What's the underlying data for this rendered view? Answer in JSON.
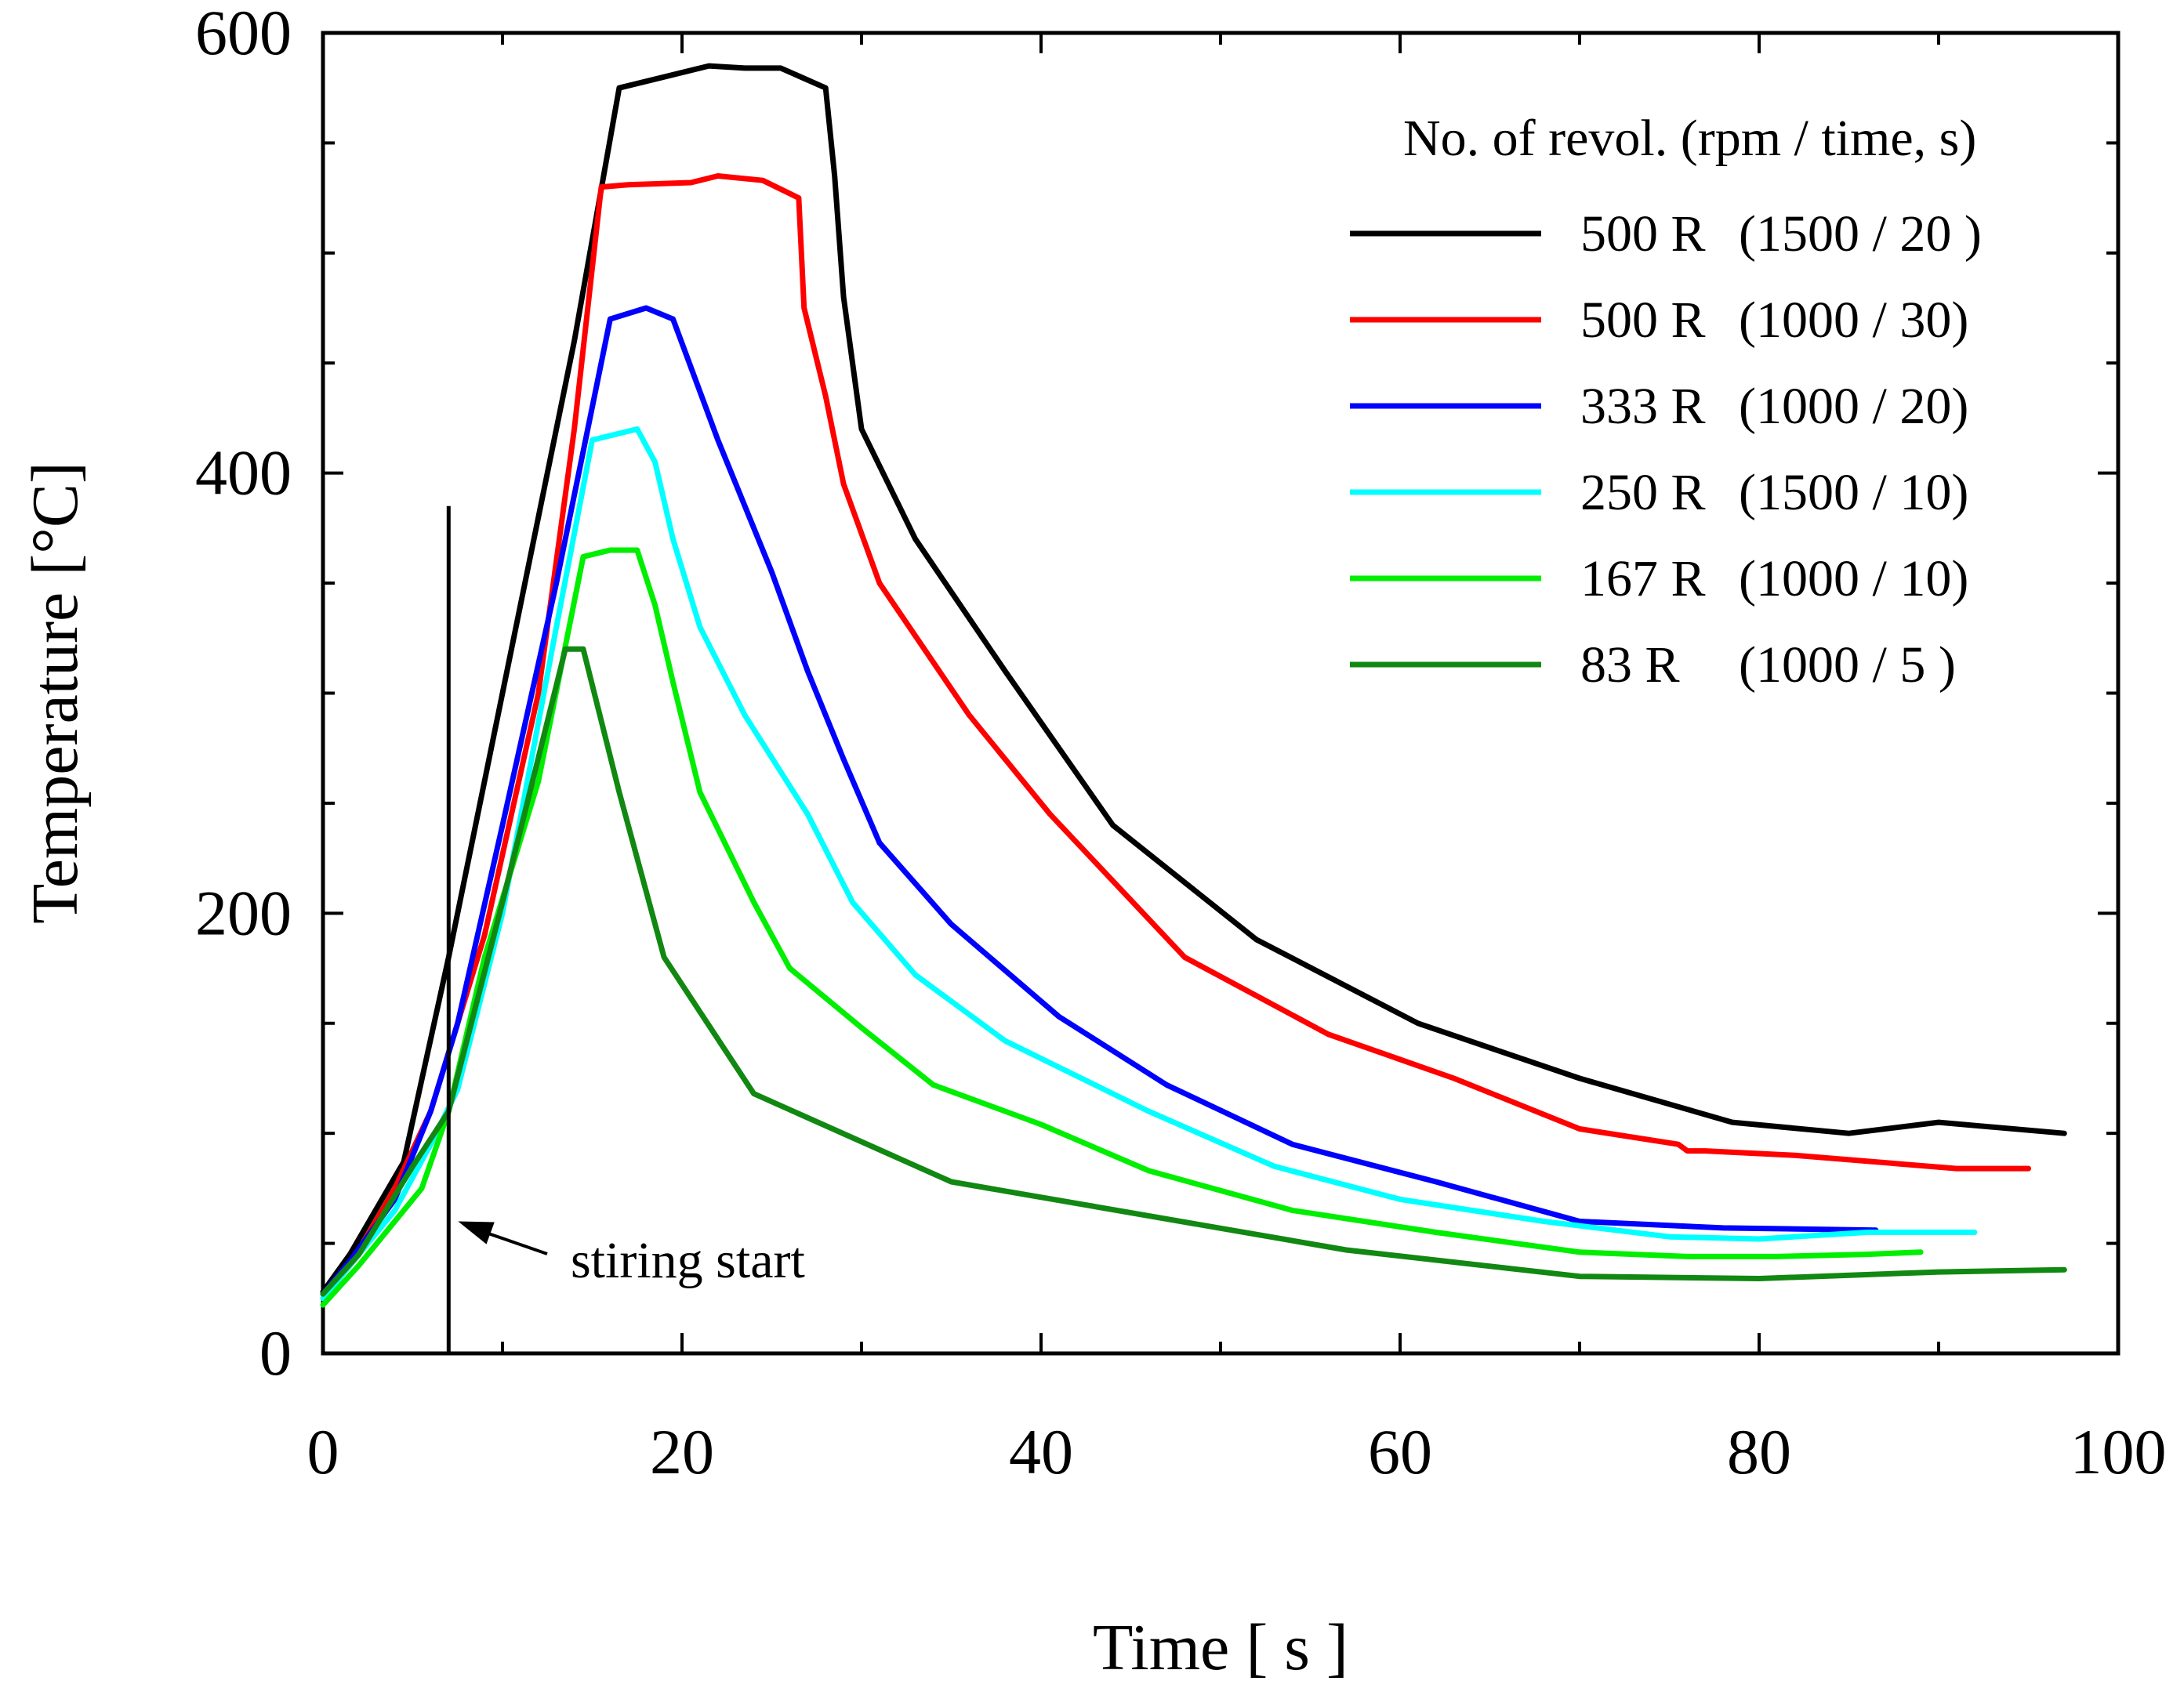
{
  "chart_data": {
    "type": "line",
    "xlabel": "Time [ s ]",
    "ylabel": "Temperature [°C]",
    "xlim": [
      0,
      100
    ],
    "ylim": [
      0,
      600
    ],
    "x_ticks": [
      0,
      20,
      40,
      60,
      80,
      100
    ],
    "y_ticks": [
      0,
      200,
      400,
      600
    ],
    "x_tick_labels": [
      "0",
      "20",
      "40",
      "60",
      "80",
      "100"
    ],
    "y_tick_labels": [
      "0",
      "200",
      "400",
      "600"
    ],
    "grid": false,
    "legend": {
      "title": "No. of revol. (rpm / time, s)",
      "position": "top-right",
      "entries": [
        {
          "rev": "500 R",
          "setting": "(1500 / 20 )"
        },
        {
          "rev": "500 R",
          "setting": "(1000 / 30)"
        },
        {
          "rev": "333 R",
          "setting": "(1000 / 20)"
        },
        {
          "rev": "250 R",
          "setting": "(1500 / 10)"
        },
        {
          "rev": "167 R",
          "setting": "(1000 / 10)"
        },
        {
          "rev": "83 R",
          "setting": "(1000 / 5 )"
        }
      ]
    },
    "annotation": {
      "text": "stiring start",
      "x": 7,
      "target_y": 60,
      "line_ymin": 0,
      "line_ymax": 385
    },
    "series": [
      {
        "name": "500 R (1500 / 20 )",
        "color": "#000000",
        "x": [
          0,
          1.5,
          4.5,
          7,
          10,
          14,
          16.5,
          19,
          21.5,
          23.5,
          25.5,
          28,
          28.5,
          29,
          30,
          33,
          38,
          44,
          52,
          61,
          70,
          78.5,
          85,
          90,
          97
        ],
        "y": [
          28,
          45,
          87,
          180,
          300,
          460,
          575,
          580,
          585,
          584,
          584,
          575,
          535,
          480,
          420,
          370,
          310,
          240,
          188,
          150,
          125,
          105,
          100,
          105,
          100
        ]
      },
      {
        "name": "500 R (1000 / 30)",
        "color": "#ff0000",
        "x": [
          0,
          1.5,
          4,
          6,
          9,
          12,
          14,
          15.5,
          17,
          20.5,
          22,
          24.5,
          26.5,
          26.8,
          28,
          29,
          31,
          36,
          40.5,
          48,
          56,
          63,
          70,
          75.5,
          76,
          77,
          82,
          91,
          95
        ],
        "y": [
          25,
          40,
          75,
          110,
          190,
          300,
          420,
          530,
          531,
          532,
          535,
          533,
          525,
          475,
          435,
          395,
          350,
          290,
          245,
          180,
          145,
          125,
          102,
          95,
          92,
          92,
          90,
          84,
          84
        ]
      },
      {
        "name": "333 R (1000 / 20)",
        "color": "#0000ff",
        "x": [
          0,
          1.5,
          4,
          6,
          7.5,
          10,
          13,
          16,
          18,
          19.5,
          22,
          25,
          27,
          29,
          31,
          35,
          41,
          47,
          54,
          62,
          70,
          78,
          86.5
        ],
        "y": [
          27,
          42,
          70,
          110,
          150,
          240,
          350,
          470,
          475,
          470,
          415,
          355,
          310,
          270,
          232,
          195,
          153,
          122,
          95,
          78,
          60,
          57,
          56
        ]
      },
      {
        "name": "250 R (1500 / 10)",
        "color": "#00ffff",
        "x": [
          0,
          1.5,
          4,
          6,
          7.5,
          10,
          13,
          15,
          17.5,
          18.5,
          19.5,
          21,
          23.5,
          27,
          29.5,
          33,
          38,
          46,
          53,
          60,
          68,
          75,
          80,
          86,
          92
        ],
        "y": [
          25,
          40,
          65,
          95,
          120,
          200,
          330,
          415,
          420,
          405,
          370,
          330,
          290,
          245,
          205,
          172,
          142,
          110,
          85,
          70,
          60,
          53,
          52,
          55,
          55
        ]
      },
      {
        "name": "167 R (1000 / 10)",
        "color": "#00ee00",
        "x": [
          0,
          2,
          5.5,
          7,
          9,
          12,
          14.5,
          16,
          17.5,
          18.5,
          19.5,
          21,
          24,
          26,
          30,
          34,
          40,
          46,
          54,
          62,
          70,
          76,
          81,
          86,
          89
        ],
        "y": [
          22,
          40,
          75,
          110,
          180,
          260,
          362,
          365,
          365,
          340,
          305,
          255,
          205,
          175,
          148,
          122,
          104,
          83,
          65,
          55,
          46,
          44,
          44,
          45,
          46
        ]
      },
      {
        "name": "83 R (1000 / 5 )",
        "color": "#118811",
        "x": [
          0,
          2,
          5,
          7,
          10,
          13.5,
          14.5,
          16.5,
          19,
          24,
          35,
          57,
          70,
          80,
          90,
          97
        ],
        "y": [
          27,
          45,
          85,
          110,
          205,
          320,
          320,
          255,
          180,
          118,
          78,
          47,
          35,
          34,
          37,
          38
        ]
      }
    ]
  }
}
